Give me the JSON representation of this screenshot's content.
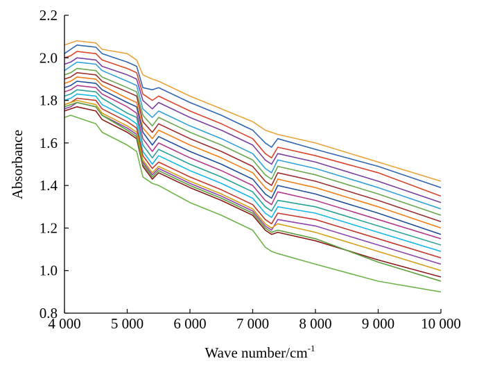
{
  "chart_data": {
    "type": "line",
    "title": "",
    "xlabel": "Wave number/cm",
    "xlabel_superscript": "-1",
    "ylabel": "Absorbance",
    "xlim": [
      4000,
      10000
    ],
    "ylim": [
      0.8,
      2.2
    ],
    "x_ticks": [
      4000,
      5000,
      6000,
      7000,
      8000,
      9000,
      10000
    ],
    "x_tick_labels": [
      "4 000",
      "5 000",
      "6 000",
      "7 000",
      "8 000",
      "9 000",
      "10 000"
    ],
    "y_ticks": [
      0.8,
      1.0,
      1.2,
      1.4,
      1.6,
      1.8,
      2.0,
      2.2
    ],
    "y_tick_labels": [
      "0.8",
      "1.0",
      "1.2",
      "1.4",
      "1.6",
      "1.8",
      "2.0",
      "2.2"
    ],
    "grid": false,
    "legend": "none",
    "x": [
      4000,
      4100,
      4200,
      4500,
      4600,
      5000,
      5150,
      5250,
      5400,
      5500,
      6000,
      6500,
      7000,
      7200,
      7300,
      7400,
      8000,
      9000,
      10000
    ],
    "series": [
      {
        "values": [
          2.06,
          2.07,
          2.08,
          2.07,
          2.04,
          2.02,
          1.99,
          1.92,
          1.9,
          1.89,
          1.82,
          1.76,
          1.7,
          1.66,
          1.65,
          1.64,
          1.6,
          1.51,
          1.42
        ],
        "color": "#e8a33d"
      },
      {
        "values": [
          2.02,
          2.04,
          2.06,
          2.05,
          2.02,
          1.98,
          1.96,
          1.86,
          1.85,
          1.86,
          1.79,
          1.73,
          1.66,
          1.6,
          1.58,
          1.62,
          1.57,
          1.49,
          1.39
        ],
        "color": "#2f66b3"
      },
      {
        "values": [
          2.0,
          2.01,
          2.03,
          2.02,
          1.99,
          1.95,
          1.93,
          1.83,
          1.8,
          1.82,
          1.75,
          1.69,
          1.62,
          1.55,
          1.53,
          1.58,
          1.54,
          1.46,
          1.35
        ],
        "color": "#d9452b"
      },
      {
        "values": [
          1.97,
          1.98,
          2.0,
          1.99,
          1.96,
          1.92,
          1.9,
          1.8,
          1.76,
          1.79,
          1.72,
          1.66,
          1.59,
          1.52,
          1.5,
          1.55,
          1.51,
          1.42,
          1.32
        ],
        "color": "#7b3fa0"
      },
      {
        "values": [
          1.94,
          1.96,
          1.98,
          1.97,
          1.94,
          1.89,
          1.87,
          1.76,
          1.72,
          1.75,
          1.68,
          1.62,
          1.55,
          1.48,
          1.46,
          1.52,
          1.48,
          1.39,
          1.29
        ],
        "color": "#32a0d8"
      },
      {
        "values": [
          1.92,
          1.93,
          1.95,
          1.94,
          1.91,
          1.86,
          1.84,
          1.73,
          1.68,
          1.72,
          1.65,
          1.59,
          1.52,
          1.45,
          1.43,
          1.49,
          1.45,
          1.36,
          1.26
        ],
        "color": "#6aa84f"
      },
      {
        "values": [
          1.9,
          1.91,
          1.93,
          1.92,
          1.89,
          1.84,
          1.82,
          1.7,
          1.65,
          1.69,
          1.62,
          1.56,
          1.49,
          1.42,
          1.4,
          1.46,
          1.42,
          1.33,
          1.23
        ],
        "color": "#9b2d2d"
      },
      {
        "values": [
          1.88,
          1.89,
          1.91,
          1.9,
          1.87,
          1.81,
          1.79,
          1.67,
          1.62,
          1.66,
          1.59,
          1.53,
          1.46,
          1.39,
          1.37,
          1.43,
          1.39,
          1.3,
          1.2
        ],
        "color": "#f07f1a"
      },
      {
        "values": [
          1.86,
          1.87,
          1.89,
          1.88,
          1.85,
          1.79,
          1.77,
          1.65,
          1.59,
          1.63,
          1.56,
          1.5,
          1.43,
          1.36,
          1.34,
          1.4,
          1.36,
          1.27,
          1.17
        ],
        "color": "#1f4e9c"
      },
      {
        "values": [
          1.84,
          1.85,
          1.87,
          1.86,
          1.83,
          1.77,
          1.74,
          1.62,
          1.56,
          1.6,
          1.53,
          1.47,
          1.4,
          1.33,
          1.31,
          1.37,
          1.33,
          1.24,
          1.15
        ],
        "color": "#b23a8c"
      },
      {
        "values": [
          1.82,
          1.83,
          1.85,
          1.84,
          1.81,
          1.74,
          1.72,
          1.59,
          1.53,
          1.57,
          1.5,
          1.44,
          1.37,
          1.3,
          1.28,
          1.33,
          1.3,
          1.21,
          1.12
        ],
        "color": "#2aa198"
      },
      {
        "values": [
          1.8,
          1.81,
          1.83,
          1.82,
          1.78,
          1.72,
          1.69,
          1.56,
          1.5,
          1.54,
          1.47,
          1.41,
          1.34,
          1.27,
          1.25,
          1.3,
          1.27,
          1.18,
          1.09
        ],
        "color": "#17b6e8"
      },
      {
        "values": [
          1.78,
          1.79,
          1.81,
          1.8,
          1.76,
          1.7,
          1.67,
          1.54,
          1.48,
          1.51,
          1.44,
          1.38,
          1.31,
          1.24,
          1.22,
          1.27,
          1.24,
          1.15,
          1.06
        ],
        "color": "#c0392b"
      },
      {
        "values": [
          1.76,
          1.77,
          1.79,
          1.77,
          1.73,
          1.67,
          1.64,
          1.51,
          1.45,
          1.48,
          1.41,
          1.35,
          1.28,
          1.21,
          1.19,
          1.24,
          1.21,
          1.12,
          1.03
        ],
        "color": "#8e44ad"
      },
      {
        "values": [
          1.78,
          1.79,
          1.8,
          1.78,
          1.74,
          1.68,
          1.65,
          1.52,
          1.46,
          1.49,
          1.42,
          1.36,
          1.29,
          1.22,
          1.2,
          1.22,
          1.18,
          1.09,
          1.0
        ],
        "color": "#d4a017"
      },
      {
        "values": [
          1.75,
          1.76,
          1.77,
          1.75,
          1.71,
          1.65,
          1.62,
          1.49,
          1.43,
          1.46,
          1.39,
          1.33,
          1.26,
          1.19,
          1.17,
          1.18,
          1.14,
          1.05,
          0.97
        ],
        "color": "#8b1a1a"
      },
      {
        "values": [
          1.77,
          1.78,
          1.79,
          1.77,
          1.73,
          1.66,
          1.63,
          1.5,
          1.44,
          1.47,
          1.4,
          1.34,
          1.27,
          1.2,
          1.18,
          1.19,
          1.15,
          1.04,
          0.95
        ],
        "color": "#5b9e3c"
      },
      {
        "values": [
          1.72,
          1.73,
          1.72,
          1.69,
          1.65,
          1.59,
          1.56,
          1.44,
          1.41,
          1.4,
          1.32,
          1.26,
          1.19,
          1.11,
          1.09,
          1.08,
          1.03,
          0.95,
          0.9
        ],
        "color": "#6fb34a"
      }
    ]
  }
}
